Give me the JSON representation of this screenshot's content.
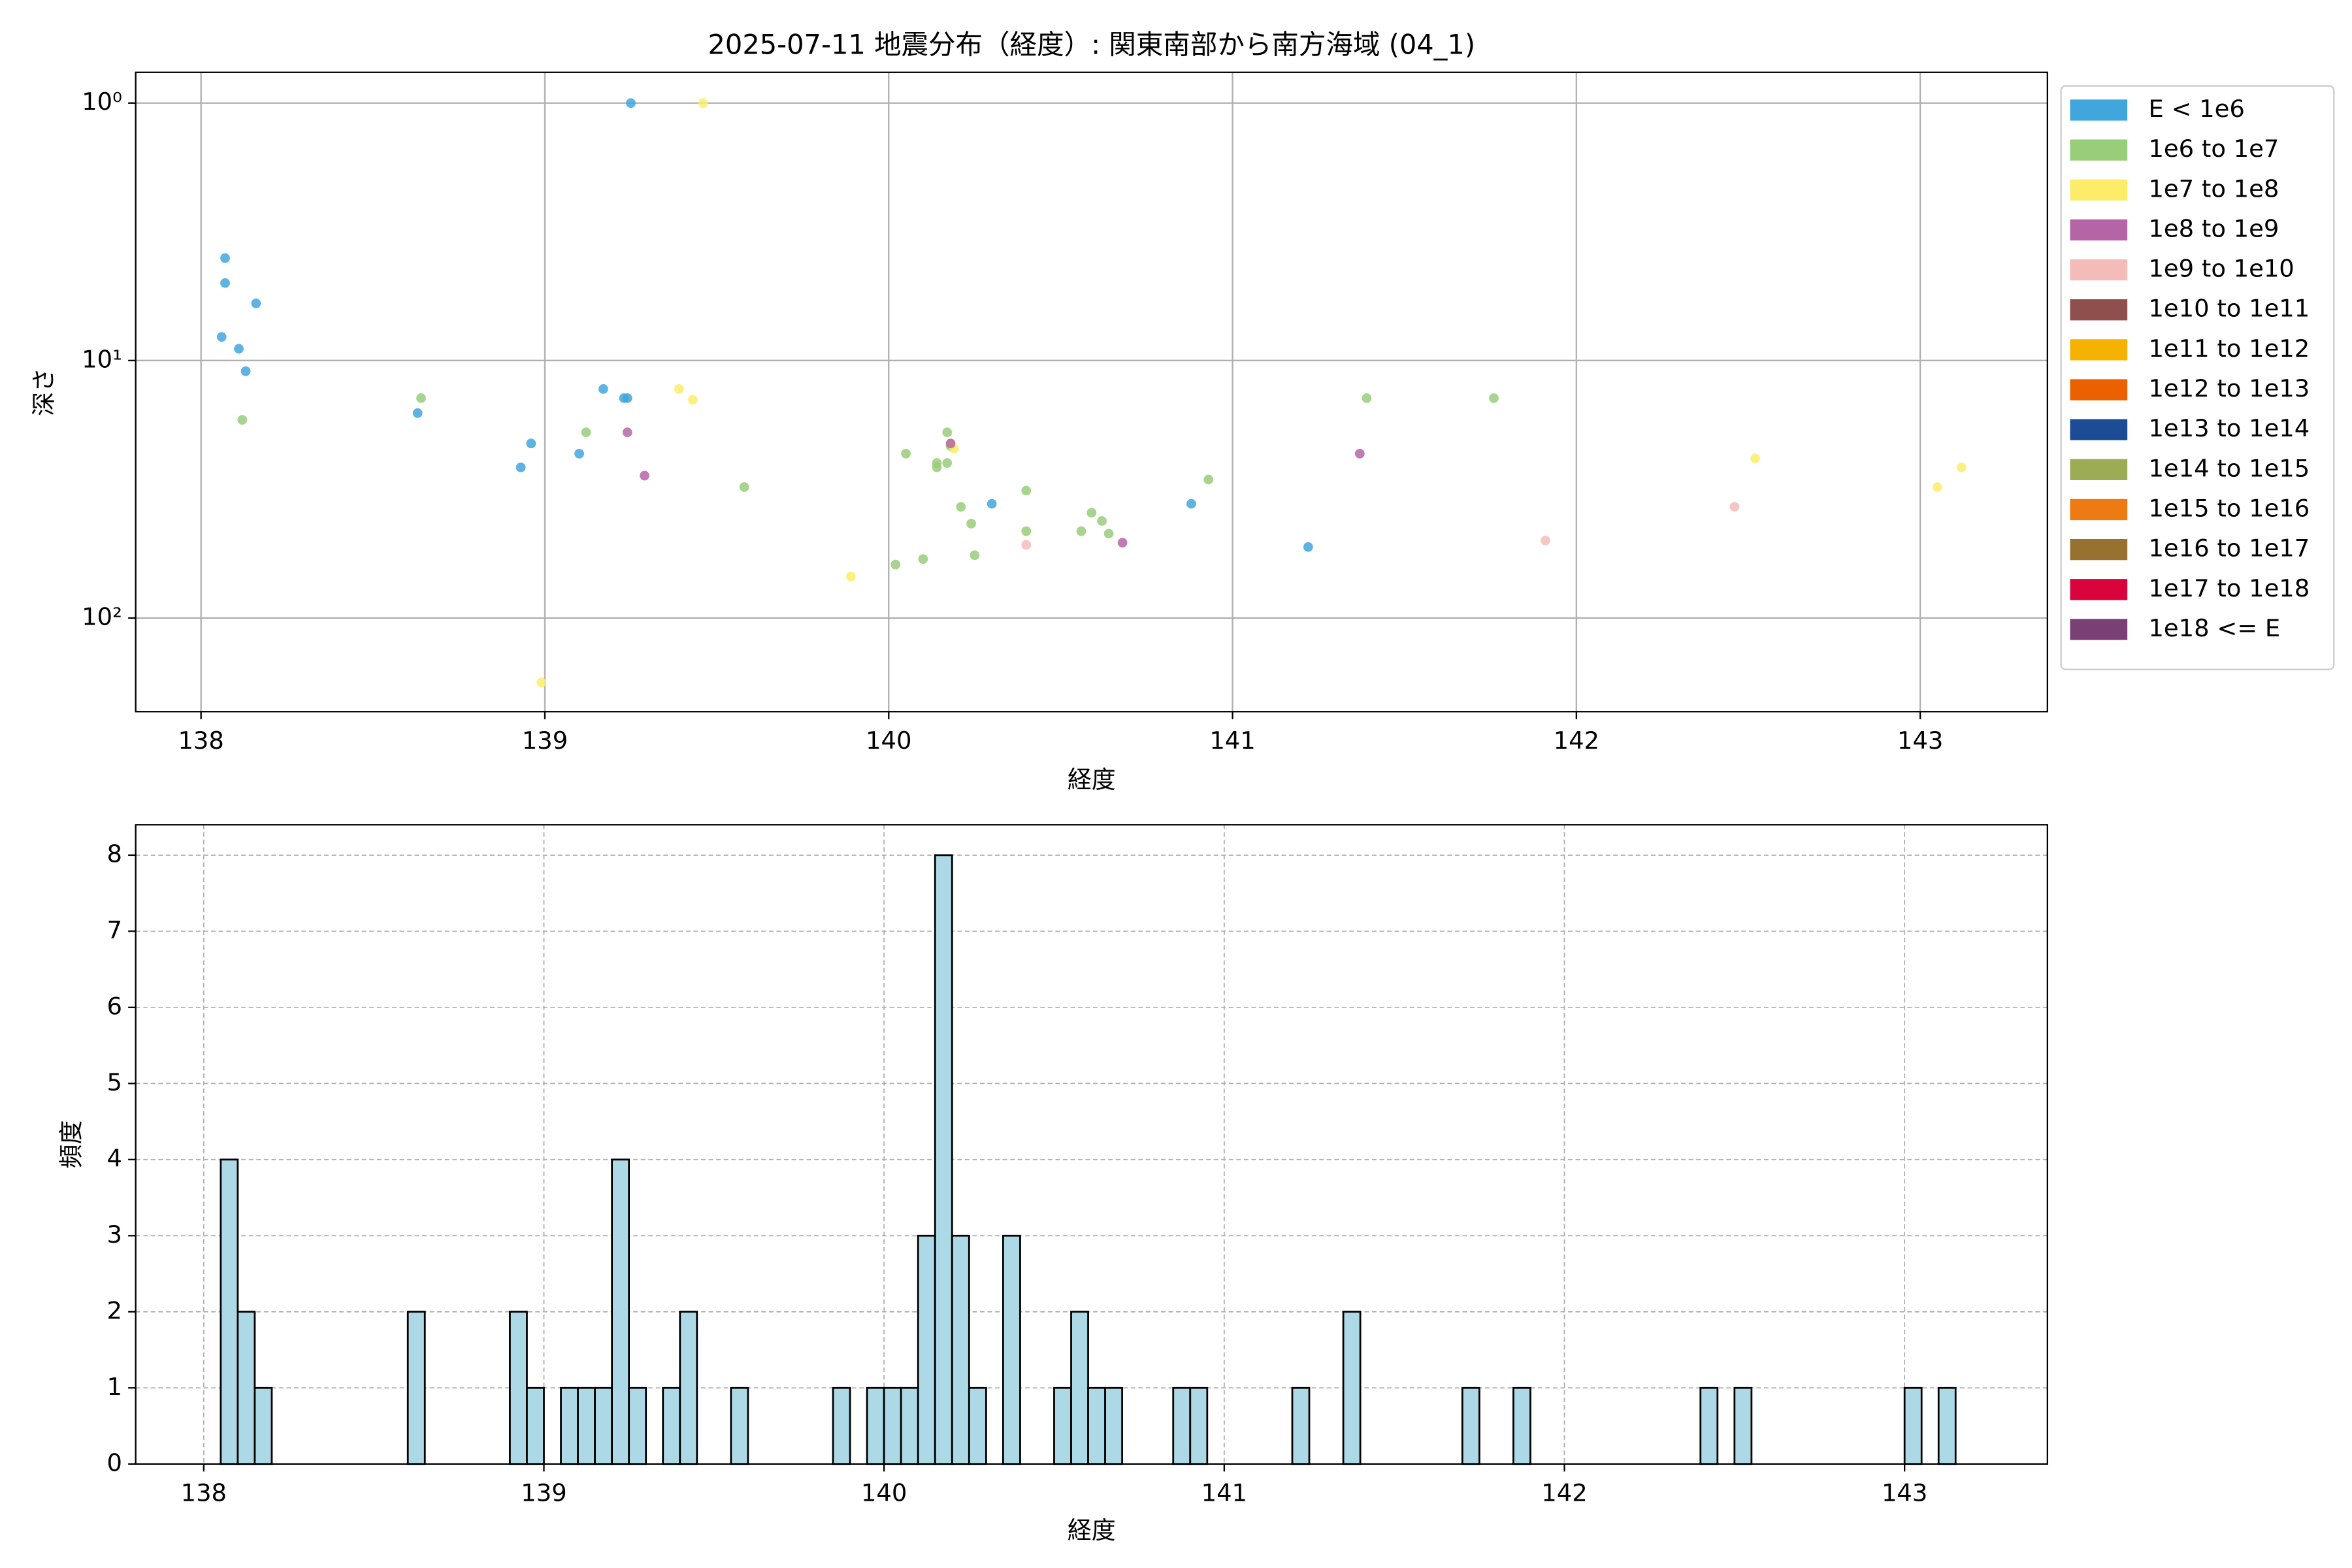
{
  "chart_data": [
    {
      "type": "scatter",
      "title": "2025-07-11 地震分布（経度）: 関東南部から南方海域 (04_1)",
      "xlabel": "経度",
      "ylabel": "深さ",
      "xlim": [
        137.81,
        143.37
      ],
      "ylim": [
        231,
        0.76
      ],
      "y_scale": "log",
      "xticks": [
        138,
        139,
        140,
        141,
        142,
        143
      ],
      "yticks": [
        {
          "value": 1,
          "label": "10⁰"
        },
        {
          "value": 10,
          "label": "10¹"
        },
        {
          "value": 100,
          "label": "10²"
        }
      ],
      "grid": true,
      "legend": "outside upper right",
      "series": [
        {
          "name": "E < 1e6",
          "color": "#41a6dc",
          "x": [
            138.07,
            138.07,
            138.06,
            138.11,
            138.13,
            138.16,
            138.63,
            139.25,
            138.93,
            138.96,
            139.1,
            139.17,
            139.23,
            139.24,
            140.3,
            140.88,
            141.22
          ],
          "y": [
            4.0,
            5.0,
            8.1,
            9.0,
            11,
            6.0,
            16,
            1.0,
            26,
            21,
            23,
            12.9,
            14,
            14,
            36,
            36,
            53
          ]
        },
        {
          "name": "1e6 to 1e7",
          "color": "#98cd7a",
          "x": [
            138.12,
            138.64,
            139.12,
            139.58,
            140.05,
            140.1,
            140.14,
            140.14,
            140.17,
            140.17,
            140.18,
            140.21,
            140.24,
            140.25,
            140.4,
            140.4,
            140.56,
            140.59,
            140.62,
            140.64,
            140.93,
            141.39,
            141.76,
            140.02
          ],
          "y": [
            17,
            14,
            19,
            31,
            23,
            59,
            26,
            25,
            19,
            25,
            21.5,
            37,
            43,
            57,
            32,
            46,
            46,
            39,
            42,
            47,
            29,
            14,
            14,
            62
          ]
        },
        {
          "name": "1e7 to 1e8",
          "color": "#fdec6a",
          "x": [
            139.46,
            139.39,
            139.43,
            138.99,
            139.89,
            140.18,
            140.19,
            142.52,
            143.05,
            143.12
          ],
          "y": [
            1.0,
            12.9,
            14.2,
            178,
            69,
            21,
            22,
            24,
            31,
            26
          ]
        },
        {
          "name": "1e8 to 1e9",
          "color": "#b565a6",
          "x": [
            139.24,
            139.29,
            140.18,
            140.68,
            141.37
          ],
          "y": [
            19,
            28,
            21,
            51,
            23
          ]
        },
        {
          "name": "1e9 to 1e10",
          "color": "#f4bcb9",
          "x": [
            140.4,
            141.91,
            142.46
          ],
          "y": [
            52,
            50,
            37
          ]
        },
        {
          "name": "1e10 to 1e11",
          "color": "#8f4f4c",
          "x": [],
          "y": []
        },
        {
          "name": "1e11 to 1e12",
          "color": "#f5b200",
          "x": [],
          "y": []
        },
        {
          "name": "1e12 to 1e13",
          "color": "#eb6100",
          "x": [],
          "y": []
        },
        {
          "name": "1e13 to 1e14",
          "color": "#1d4c96",
          "x": [],
          "y": []
        },
        {
          "name": "1e14 to 1e15",
          "color": "#9bac54",
          "x": [],
          "y": []
        },
        {
          "name": "1e15 to 1e16",
          "color": "#ee7a14",
          "x": [],
          "y": []
        },
        {
          "name": "1e16 to 1e17",
          "color": "#96712f",
          "x": [],
          "y": []
        },
        {
          "name": "1e17 to 1e18",
          "color": "#d9043b",
          "x": [],
          "y": []
        },
        {
          "name": "1e18 <= E",
          "color": "#7a3f74",
          "x": [],
          "y": []
        }
      ]
    },
    {
      "type": "histogram",
      "xlabel": "経度",
      "ylabel": "頻度",
      "xlim": [
        137.8,
        143.42
      ],
      "ylim": [
        0,
        8.4
      ],
      "xticks": [
        138,
        139,
        140,
        141,
        142,
        143
      ],
      "yticks": [
        0,
        1,
        2,
        3,
        4,
        5,
        6,
        7,
        8
      ],
      "grid": true,
      "grid_style": "dashed",
      "color": "#add8e6",
      "edge_color": "#000000",
      "bins": [
        138.05,
        138.1,
        138.15,
        138.2,
        138.25,
        138.3,
        138.35,
        138.4,
        138.45,
        138.5,
        138.55,
        138.6,
        138.65,
        138.7,
        138.75,
        138.8,
        138.85,
        138.9,
        138.95,
        139,
        139.05,
        139.1,
        139.15,
        139.2,
        139.25,
        139.3,
        139.35,
        139.4,
        139.45,
        139.5,
        139.55,
        139.6,
        139.65,
        139.7,
        139.75,
        139.8,
        139.85,
        139.9,
        139.95,
        140,
        140.05,
        140.1,
        140.15,
        140.2,
        140.25,
        140.3,
        140.35,
        140.4,
        140.45,
        140.5,
        140.55,
        140.6,
        140.65,
        140.7,
        140.75,
        140.8,
        140.85,
        140.9,
        140.95,
        141,
        141.05,
        141.1,
        141.15,
        141.2,
        141.25,
        141.3,
        141.35,
        141.4,
        141.45,
        141.5,
        141.55,
        141.6,
        141.65,
        141.7,
        141.75,
        141.8,
        141.85,
        141.9,
        141.95,
        142,
        142.05,
        142.1,
        142.15,
        142.2,
        142.25,
        142.3,
        142.35,
        142.4,
        142.45,
        142.5,
        142.55,
        142.6,
        142.65,
        142.7,
        142.75,
        142.8,
        142.85,
        142.9,
        142.95,
        143,
        143.05,
        143.1,
        143.15
      ],
      "counts": [
        4,
        2,
        1,
        0,
        0,
        0,
        0,
        0,
        0,
        0,
        0,
        2,
        0,
        0,
        0,
        0,
        0,
        2,
        1,
        0,
        1,
        1,
        1,
        4,
        1,
        0,
        1,
        2,
        0,
        0,
        1,
        0,
        0,
        0,
        0,
        0,
        1,
        0,
        1,
        1,
        1,
        3,
        8,
        3,
        1,
        0,
        3,
        0,
        0,
        1,
        2,
        1,
        1,
        0,
        0,
        0,
        1,
        1,
        0,
        0,
        0,
        0,
        0,
        1,
        0,
        0,
        2,
        0,
        0,
        0,
        0,
        0,
        0,
        1,
        0,
        0,
        1,
        0,
        0,
        0,
        0,
        0,
        0,
        0,
        0,
        0,
        0,
        1,
        0,
        1,
        0,
        0,
        0,
        0,
        0,
        0,
        0,
        0,
        0,
        1,
        0,
        1
      ]
    }
  ]
}
